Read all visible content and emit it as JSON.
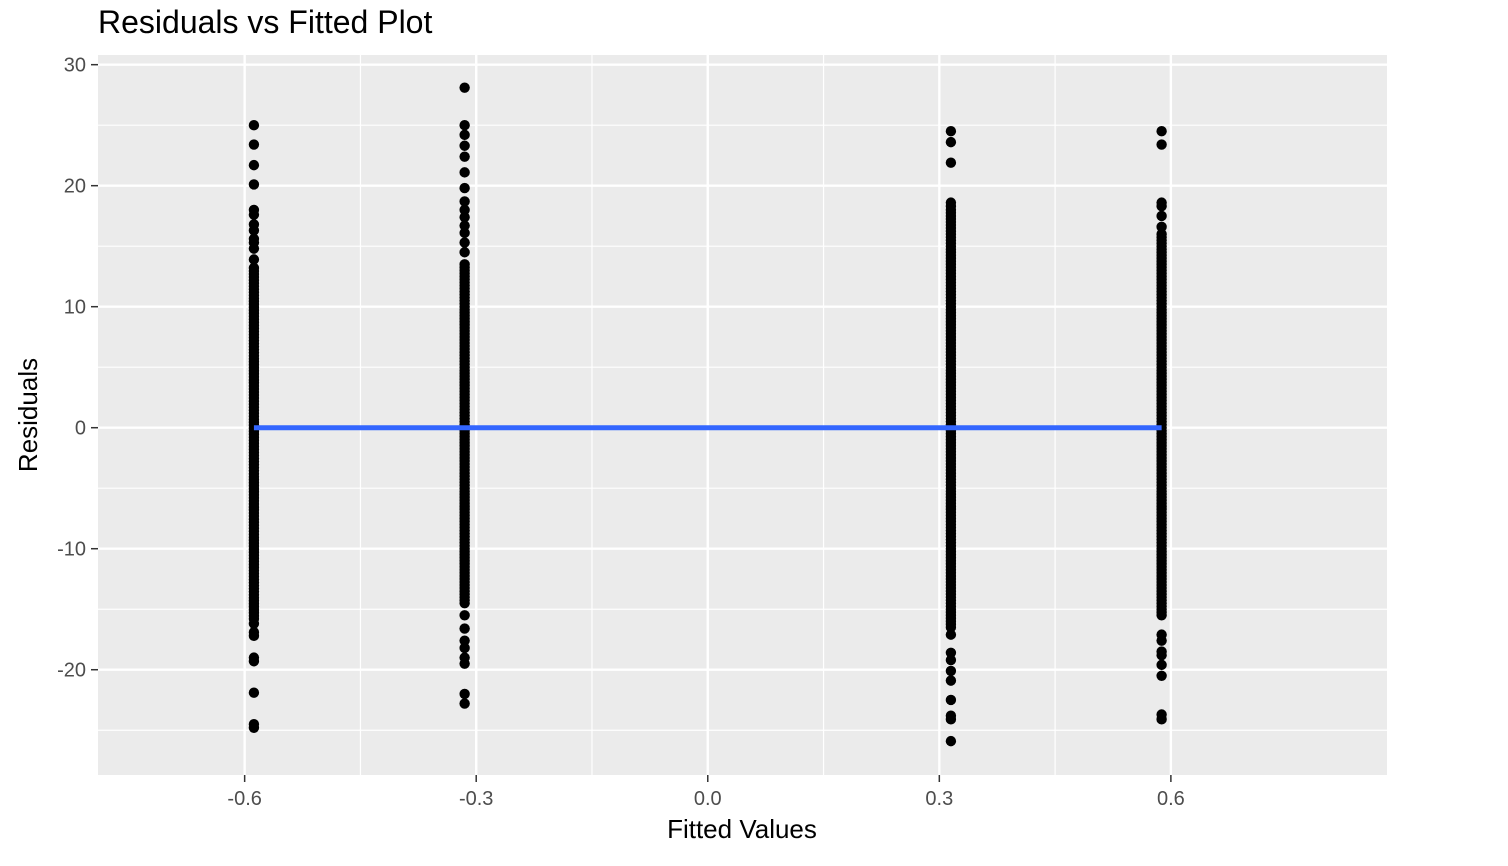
{
  "chart_data": {
    "type": "scatter",
    "title": "Residuals vs Fitted Plot",
    "xlabel": "Fitted Values",
    "ylabel": "Residuals",
    "xlim": [
      -0.79,
      0.88
    ],
    "ylim": [
      -28.7,
      30.8
    ],
    "x_ticks": [
      -0.6,
      -0.3,
      0.0,
      0.3,
      0.6
    ],
    "x_tick_labels": [
      "-0.6",
      "-0.3",
      "0.0",
      "0.3",
      "0.6"
    ],
    "y_ticks": [
      -20,
      -10,
      0,
      10,
      20,
      30
    ],
    "y_tick_labels": [
      "-20",
      "-10",
      "0",
      "10",
      "20",
      "30"
    ],
    "grid": true,
    "panel_background": "#ebebeb",
    "point_color": "#000000",
    "fit_line_color": "#3366ff",
    "groups": [
      {
        "x": -0.588,
        "dense_range": [
          -15.8,
          13.0
        ],
        "residuals": [
          25.0,
          23.4,
          21.7,
          20.1,
          18.0,
          17.6,
          16.8,
          16.3,
          15.6,
          15.3,
          14.8,
          13.9,
          13.2,
          -16.2,
          -16.9,
          -17.2,
          -19.0,
          -19.3,
          -21.9,
          -24.5,
          -24.8
        ]
      },
      {
        "x": -0.315,
        "dense_range": [
          -14.5,
          13.5
        ],
        "residuals": [
          28.1,
          25.0,
          24.2,
          23.3,
          22.4,
          21.1,
          19.8,
          18.7,
          18.0,
          17.4,
          16.7,
          16.1,
          15.3,
          14.5,
          -15.5,
          -16.6,
          -17.6,
          -18.2,
          -19.0,
          -19.5,
          -22.0,
          -22.8
        ]
      },
      {
        "x": 0.315,
        "dense_range": [
          -16.5,
          18.0
        ],
        "residuals": [
          24.5,
          23.6,
          21.9,
          18.6,
          18.3,
          -17.1,
          -18.6,
          -19.2,
          -20.1,
          -20.9,
          -22.5,
          -23.8,
          -24.1,
          -25.9
        ]
      },
      {
        "x": 0.588,
        "dense_range": [
          -15.5,
          16.2
        ],
        "residuals": [
          24.5,
          23.4,
          18.6,
          18.3,
          17.5,
          16.6,
          -17.1,
          -17.6,
          -18.5,
          -18.8,
          -19.6,
          -20.5,
          -23.7,
          -24.1
        ]
      }
    ],
    "fit_line": {
      "x": [
        -0.588,
        0.588
      ],
      "y": [
        0.0,
        0.0
      ]
    }
  }
}
